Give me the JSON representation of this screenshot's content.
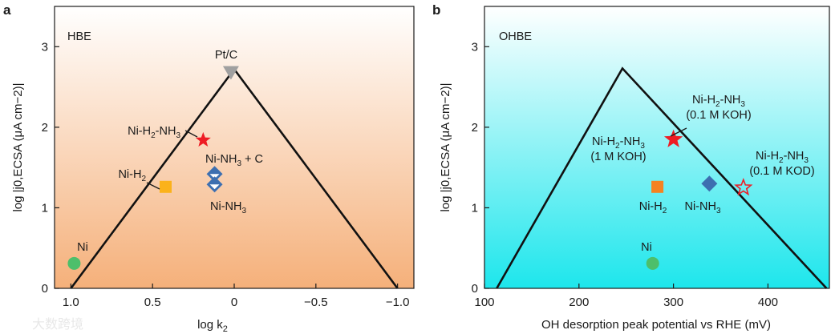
{
  "watermark": "大数跨境",
  "chart_data": [
    {
      "type": "scatter",
      "panel_letter": "a",
      "inset_label": "HBE",
      "xlabel": "log k",
      "xlabel_sub": "2",
      "ylabel": "log |j0,ECSA (μA cm−2)|",
      "xlim": [
        1.1,
        -1.1
      ],
      "ylim": [
        0,
        3.5
      ],
      "x_ticks": [
        1.0,
        0.5,
        0,
        -0.5,
        -1.0
      ],
      "x_tick_labels": [
        "1.0",
        "0.5",
        "0",
        "−0.5",
        "−1.0"
      ],
      "y_ticks": [
        0,
        1,
        2,
        3
      ],
      "y_tick_labels": [
        "0",
        "1",
        "2",
        "3"
      ],
      "background_gradient": [
        "#ffffff",
        "#f5b07a"
      ],
      "volcano_line": [
        [
          1.0,
          0.0
        ],
        [
          0.0,
          2.72
        ],
        [
          -1.0,
          0.0
        ]
      ],
      "points": [
        {
          "name": "Pt/C",
          "x": 0.02,
          "y": 2.68,
          "marker": "triangle-down",
          "color": "#a0a0a0",
          "label_parts": [
            [
              "Pt/C",
              ""
            ]
          ]
        },
        {
          "name": "Ni-H2-NH3",
          "x": 0.19,
          "y": 1.84,
          "marker": "star",
          "color": "#ee1c24",
          "label_parts": [
            [
              "Ni-H",
              ""
            ],
            [
              "2",
              "sub"
            ],
            [
              "-NH",
              ""
            ],
            [
              "3",
              "sub"
            ]
          ]
        },
        {
          "name": "Ni-NH3 + C",
          "x": 0.12,
          "y": 1.42,
          "marker": "diamond-half",
          "color": "#3d6fb0",
          "label_parts": [
            [
              "Ni-NH",
              ""
            ],
            [
              "3",
              "sub"
            ],
            [
              " + C",
              ""
            ]
          ]
        },
        {
          "name": "Ni-NH3",
          "x": 0.12,
          "y": 1.29,
          "marker": "diamond-half",
          "color": "#3d6fb0",
          "label_parts": [
            [
              "Ni-NH",
              ""
            ],
            [
              "3",
              "sub"
            ]
          ]
        },
        {
          "name": "Ni-H2",
          "x": 0.42,
          "y": 1.26,
          "marker": "square",
          "color": "#fbb21b",
          "label_parts": [
            [
              "Ni-H",
              ""
            ],
            [
              "2",
              "sub"
            ]
          ]
        },
        {
          "name": "Ni",
          "x": 0.98,
          "y": 0.31,
          "marker": "circle",
          "color": "#4dbf6b",
          "label_parts": [
            [
              "Ni",
              ""
            ]
          ]
        }
      ]
    },
    {
      "type": "scatter",
      "panel_letter": "b",
      "inset_label": "OHBE",
      "xlabel": "OH desorption peak potential vs RHE (mV)",
      "ylabel": "log |j0,ECSA (μA cm−2)|",
      "xlim": [
        100,
        465
      ],
      "ylim": [
        0,
        3.5
      ],
      "x_ticks": [
        100,
        200,
        300,
        400
      ],
      "x_tick_labels": [
        "100",
        "200",
        "300",
        "400"
      ],
      "y_ticks": [
        0,
        1,
        2,
        3
      ],
      "y_tick_labels": [
        "0",
        "1",
        "2",
        "3"
      ],
      "background_gradient": [
        "#ffffff",
        "#1de6ec"
      ],
      "volcano_line": [
        [
          113,
          0.0
        ],
        [
          246,
          2.73
        ],
        [
          462,
          0.0
        ]
      ],
      "points": [
        {
          "name": "Ni-H2-NH3 (0.1 M KOH)",
          "x": 300,
          "y": 1.85,
          "marker": "star",
          "color": "#ee1c24",
          "label_parts": [
            [
              "Ni-H",
              ""
            ],
            [
              "2",
              "sub"
            ],
            [
              "-NH",
              ""
            ],
            [
              "3",
              "sub"
            ]
          ],
          "label_line2": "(0.1 M KOH)"
        },
        {
          "name": "Ni-H2-NH3 (1 M KOH)",
          "x": 300,
          "y": 1.85,
          "marker": "star-open",
          "color": "#ee1c24",
          "label_parts": [
            [
              "Ni-H",
              ""
            ],
            [
              "2",
              "sub"
            ],
            [
              "-NH",
              ""
            ],
            [
              "3",
              "sub"
            ]
          ],
          "label_line2": "(1 M KOH)"
        },
        {
          "name": "Ni-H2-NH3 (0.1 M KOD)",
          "x": 374,
          "y": 1.25,
          "marker": "star-open",
          "color": "#ee1c24",
          "label_parts": [
            [
              "Ni-H",
              ""
            ],
            [
              "2",
              "sub"
            ],
            [
              "-NH",
              ""
            ],
            [
              "3",
              "sub"
            ]
          ],
          "label_line2": "(0.1 M KOD)"
        },
        {
          "name": "Ni-NH3",
          "x": 338,
          "y": 1.3,
          "marker": "diamond",
          "color": "#3d6fb0",
          "label_parts": [
            [
              "Ni-NH",
              ""
            ],
            [
              "3",
              "sub"
            ]
          ]
        },
        {
          "name": "Ni-H2",
          "x": 283,
          "y": 1.26,
          "marker": "square",
          "color": "#f58220",
          "label_parts": [
            [
              "Ni-H",
              ""
            ],
            [
              "2",
              "sub"
            ]
          ]
        },
        {
          "name": "Ni",
          "x": 278,
          "y": 0.31,
          "marker": "circle",
          "color": "#4dbf6b",
          "label_parts": [
            [
              "Ni",
              ""
            ]
          ]
        }
      ]
    }
  ]
}
